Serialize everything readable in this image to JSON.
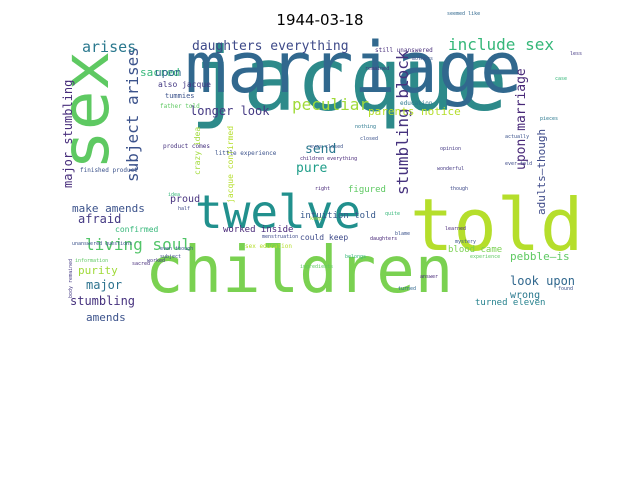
{
  "title": "1944-03-18",
  "words": [
    {
      "text": "jacque",
      "color": "#2d8a8a"
    },
    {
      "text": "marriage",
      "color": "#31688e"
    },
    {
      "text": "sex",
      "color": "#5ec962"
    },
    {
      "text": "told",
      "color": "#b5de2b"
    },
    {
      "text": "children",
      "color": "#7ad151"
    },
    {
      "text": "twelve",
      "color": "#21908d"
    },
    {
      "text": "living soul",
      "color": "#52c569"
    },
    {
      "text": "daughters everything",
      "color": "#3e4a89"
    },
    {
      "text": "include sex",
      "color": "#35b779"
    },
    {
      "text": "peculiar",
      "color": "#a0da39"
    },
    {
      "text": "subject arises",
      "color": "#3b528b"
    },
    {
      "text": "stumbling block",
      "color": "#46327e"
    },
    {
      "text": "arises",
      "color": "#2a788e"
    },
    {
      "text": "sacred",
      "color": "#35b779"
    },
    {
      "text": "upon",
      "color": "#31688e"
    },
    {
      "text": "longer look",
      "color": "#443983"
    },
    {
      "text": "parents notice",
      "color": "#b5de2b"
    },
    {
      "text": "upon marriage",
      "color": "#482878"
    },
    {
      "text": "adults—though",
      "color": "#3e4a89"
    },
    {
      "text": "major stumbling",
      "color": "#472d7b"
    },
    {
      "text": "make amends",
      "color": "#3b528b"
    },
    {
      "text": "send",
      "color": "#2a788e"
    },
    {
      "text": "pure",
      "color": "#1f9e89"
    },
    {
      "text": "purity",
      "color": "#a0da39"
    },
    {
      "text": "afraid",
      "color": "#443983"
    },
    {
      "text": "stumbling",
      "color": "#46327e"
    },
    {
      "text": "major",
      "color": "#2c728e"
    },
    {
      "text": "amends",
      "color": "#3b528b"
    },
    {
      "text": "look upon",
      "color": "#31688e"
    },
    {
      "text": "pebble—is",
      "color": "#5ec962"
    },
    {
      "text": "turned eleven",
      "color": "#26828e"
    },
    {
      "text": "blood came",
      "color": "#7ad151"
    },
    {
      "text": "figured",
      "color": "#5ec962"
    },
    {
      "text": "intuition told",
      "color": "#38598c"
    },
    {
      "text": "worked inside",
      "color": "#482878"
    },
    {
      "text": "proud",
      "color": "#46327e"
    },
    {
      "text": "also jacque",
      "color": "#443983"
    },
    {
      "text": "crazy idea",
      "color": "#a0da39"
    },
    {
      "text": "jacque confirmed",
      "color": "#b5de2b"
    },
    {
      "text": "confirmed",
      "color": "#35b779"
    },
    {
      "text": "wrong",
      "color": "#2a788e"
    },
    {
      "text": "could keep",
      "color": "#3e4a89"
    },
    {
      "text": "tummies",
      "color": "#3b528b"
    },
    {
      "text": "father told",
      "color": "#5ec962"
    },
    {
      "text": "finished product",
      "color": "#3b528b"
    },
    {
      "text": "product comes",
      "color": "#46327e"
    },
    {
      "text": "little experience",
      "color": "#3b528b"
    },
    {
      "text": "sex education",
      "color": "#b5de2b"
    },
    {
      "text": "education",
      "color": "#2a788e"
    },
    {
      "text": "still unanswered",
      "color": "#472d7b"
    },
    {
      "text": "unanswered questions",
      "color": "#3b528b"
    },
    {
      "text": "body remained",
      "color": "#443983"
    },
    {
      "text": "remained",
      "color": "#46327e"
    },
    {
      "text": "children everything",
      "color": "#482878"
    },
    {
      "text": "eyes closed",
      "color": "#3b528b"
    },
    {
      "text": "though",
      "color": "#3e4a89"
    },
    {
      "text": "answer",
      "color": "#482878"
    },
    {
      "text": "turned",
      "color": "#31688e"
    },
    {
      "text": "found",
      "color": "#3b528b"
    },
    {
      "text": "menstruation",
      "color": "#3e4a89"
    },
    {
      "text": "ingredients",
      "color": "#5ec962"
    },
    {
      "text": "mystery",
      "color": "#3b528b"
    },
    {
      "text": "learned",
      "color": "#482878"
    },
    {
      "text": "opinion",
      "color": "#443983"
    },
    {
      "text": "belongs",
      "color": "#35b779"
    },
    {
      "text": "daughters",
      "color": "#482878"
    },
    {
      "text": "wonderful",
      "color": "#443983"
    },
    {
      "text": "ever told",
      "color": "#3e4a89"
    },
    {
      "text": "actually",
      "color": "#3b528b"
    },
    {
      "text": "subject",
      "color": "#3e4a89"
    },
    {
      "text": "even though",
      "color": "#3b528b"
    },
    {
      "text": "information",
      "color": "#5ec962"
    },
    {
      "text": "seemed like",
      "color": "#31688e"
    },
    {
      "text": "mothers",
      "color": "#3b528b"
    },
    {
      "text": "pieces",
      "color": "#2a788e"
    },
    {
      "text": "case",
      "color": "#35b779"
    },
    {
      "text": "half",
      "color": "#3e4a89"
    },
    {
      "text": "right",
      "color": "#482878"
    },
    {
      "text": "keep",
      "color": "#a0da39"
    },
    {
      "text": "quite",
      "color": "#35b779"
    },
    {
      "text": "blame",
      "color": "#3b528b"
    },
    {
      "text": "experience",
      "color": "#5ec962"
    },
    {
      "text": "sacred",
      "color": "#472d7b"
    },
    {
      "text": "less",
      "color": "#443983"
    },
    {
      "text": "nothing",
      "color": "#2a788e"
    },
    {
      "text": "closed",
      "color": "#3b528b"
    },
    {
      "text": "worked",
      "color": "#443983"
    },
    {
      "text": "idea",
      "color": "#35b779"
    }
  ]
}
